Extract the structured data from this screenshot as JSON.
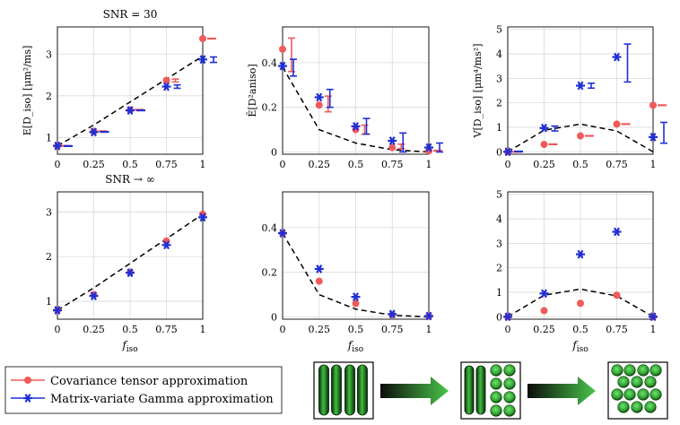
{
  "colors": {
    "cov": "#f05a5a",
    "mvg": "#1f2fd6",
    "pred": "#000000",
    "grid": "#d9d9d9",
    "cyl_dark": "#0a2a0a",
    "cyl_light": "#3fbf3f",
    "arrow_dark": "#0d0d0d",
    "arrow_light": "#49c449"
  },
  "legend": {
    "cov_label": "Covariance tensor approximation",
    "mvg_label": "Matrix-variate Gamma approximation"
  },
  "xlabel": "f",
  "xlabel_sub": "iso",
  "chart_data": [
    {
      "id": "mean-snr30",
      "type": "scatter",
      "title": "SNR = 30",
      "ylabel": "E[D_iso] [μm²/ms]",
      "x": [
        0,
        0.25,
        0.5,
        0.75,
        1
      ],
      "xticks": [
        "0",
        "0.25",
        "0.5",
        "0.75",
        "1"
      ],
      "yticks": [
        1,
        2,
        3
      ],
      "ylim": [
        0.6,
        3.65
      ],
      "series": [
        {
          "name": "Covariance tensor approximation",
          "values": [
            0.8,
            1.15,
            1.66,
            2.37,
            3.37
          ]
        },
        {
          "name": "Matrix-variate Gamma approximation",
          "values": [
            0.8,
            1.13,
            1.65,
            2.22,
            2.87
          ]
        }
      ],
      "predicted": [
        0.8,
        1.3,
        1.85,
        2.4,
        2.95
      ],
      "errorbars": [
        {
          "series": "Covariance tensor approximation",
          "lo": [
            0.78,
            1.13,
            1.65,
            2.33,
            3.35
          ],
          "hi": [
            0.82,
            1.17,
            1.68,
            2.4,
            3.39
          ]
        },
        {
          "series": "Matrix-variate Gamma approximation",
          "lo": [
            0.77,
            1.11,
            1.63,
            2.18,
            2.8
          ],
          "hi": [
            0.82,
            1.16,
            1.67,
            2.26,
            2.93
          ]
        }
      ]
    },
    {
      "id": "anisotropy-snr30",
      "type": "scatter",
      "title": "",
      "ylabel": "Ẽ[D²aniso]",
      "x": [
        0,
        0.25,
        0.5,
        0.75,
        1
      ],
      "xticks": [
        "0",
        "0.25",
        "0.5",
        "0.75",
        "1"
      ],
      "yticks": [
        0,
        0.2,
        0.4
      ],
      "ylim": [
        -0.01,
        0.56
      ],
      "series": [
        {
          "name": "Covariance tensor approximation",
          "values": [
            0.46,
            0.21,
            0.1,
            0.02,
            0.005
          ]
        },
        {
          "name": "Matrix-variate Gamma approximation",
          "values": [
            0.385,
            0.245,
            0.115,
            0.05,
            0.02
          ]
        }
      ],
      "predicted": [
        0.38,
        0.1,
        0.04,
        0.01,
        0.0
      ],
      "errorbars": [
        {
          "series": "Covariance tensor approximation",
          "lo": [
            0.36,
            0.18,
            0.08,
            0.015,
            0.0
          ],
          "hi": [
            0.51,
            0.25,
            0.12,
            0.035,
            0.012
          ]
        },
        {
          "series": "Matrix-variate Gamma approximation",
          "lo": [
            0.34,
            0.2,
            0.08,
            0.0,
            0.0
          ],
          "hi": [
            0.415,
            0.28,
            0.15,
            0.085,
            0.04
          ]
        }
      ]
    },
    {
      "id": "variance-snr30",
      "type": "scatter",
      "title": "",
      "ylabel": "V[D_iso] [μm⁴/ms²]",
      "x": [
        0,
        0.25,
        0.5,
        0.75,
        1
      ],
      "xticks": [
        "0",
        "0.25",
        "0.5",
        "0.75",
        "1"
      ],
      "yticks": [
        0,
        1,
        2,
        3,
        4,
        5
      ],
      "ylim": [
        -0.1,
        5.1
      ],
      "series": [
        {
          "name": "Covariance tensor approximation",
          "values": [
            0.0,
            0.3,
            0.65,
            1.13,
            1.9
          ]
        },
        {
          "name": "Matrix-variate Gamma approximation",
          "values": [
            0.0,
            0.97,
            2.7,
            3.87,
            0.6
          ]
        }
      ],
      "predicted": [
        0.0,
        0.88,
        1.13,
        0.85,
        0.0
      ],
      "errorbars": [
        {
          "series": "Covariance tensor approximation",
          "lo": [
            0.0,
            0.3,
            0.64,
            1.12,
            1.89
          ],
          "hi": [
            0.0,
            0.31,
            0.66,
            1.14,
            1.91
          ]
        },
        {
          "series": "Matrix-variate Gamma approximation",
          "lo": [
            0.0,
            0.85,
            2.6,
            2.85,
            0.35
          ],
          "hi": [
            0.02,
            1.05,
            2.8,
            4.4,
            1.2
          ]
        }
      ]
    },
    {
      "id": "mean-snr-inf",
      "type": "scatter",
      "title": "SNR → ∞",
      "ylabel": "",
      "x": [
        0,
        0.25,
        0.5,
        0.75,
        1
      ],
      "xticks": [
        "0",
        "0.25",
        "0.5",
        "0.75",
        "1"
      ],
      "yticks": [
        1,
        2,
        3
      ],
      "ylim": [
        0.6,
        3.45
      ],
      "series": [
        {
          "name": "Covariance tensor approximation",
          "values": [
            0.8,
            1.15,
            1.65,
            2.35,
            2.95
          ]
        },
        {
          "name": "Matrix-variate Gamma approximation",
          "values": [
            0.8,
            1.12,
            1.64,
            2.26,
            2.88
          ]
        }
      ],
      "predicted": [
        0.8,
        1.3,
        1.85,
        2.4,
        2.95
      ],
      "errorbars": []
    },
    {
      "id": "anisotropy-snr-inf",
      "type": "scatter",
      "title": "",
      "ylabel": "",
      "x": [
        0,
        0.25,
        0.5,
        0.75,
        1
      ],
      "xticks": [
        "0",
        "0.25",
        "0.5",
        "0.75",
        "1"
      ],
      "yticks": [
        0,
        0.2,
        0.4
      ],
      "ylim": [
        -0.01,
        0.56
      ],
      "series": [
        {
          "name": "Covariance tensor approximation",
          "values": [
            0.375,
            0.16,
            0.06,
            0.01,
            0.003
          ]
        },
        {
          "name": "Matrix-variate Gamma approximation",
          "values": [
            0.375,
            0.215,
            0.09,
            0.013,
            0.004
          ]
        }
      ],
      "predicted": [
        0.375,
        0.1,
        0.035,
        0.008,
        0.0
      ],
      "errorbars": []
    },
    {
      "id": "variance-snr-inf",
      "type": "scatter",
      "title": "",
      "ylabel": "",
      "x": [
        0,
        0.25,
        0.5,
        0.75,
        1
      ],
      "xticks": [
        "0",
        "0.25",
        "0.5",
        "0.75",
        "1"
      ],
      "yticks": [
        0,
        1,
        2,
        3,
        4,
        5
      ],
      "ylim": [
        -0.1,
        5.1
      ],
      "series": [
        {
          "name": "Covariance tensor approximation",
          "values": [
            0.0,
            0.25,
            0.55,
            0.88,
            0.0
          ]
        },
        {
          "name": "Matrix-variate Gamma approximation",
          "values": [
            0.0,
            0.95,
            2.55,
            3.47,
            0.0
          ]
        }
      ],
      "predicted": [
        0.0,
        0.88,
        1.13,
        0.85,
        0.0
      ],
      "errorbars": []
    }
  ]
}
